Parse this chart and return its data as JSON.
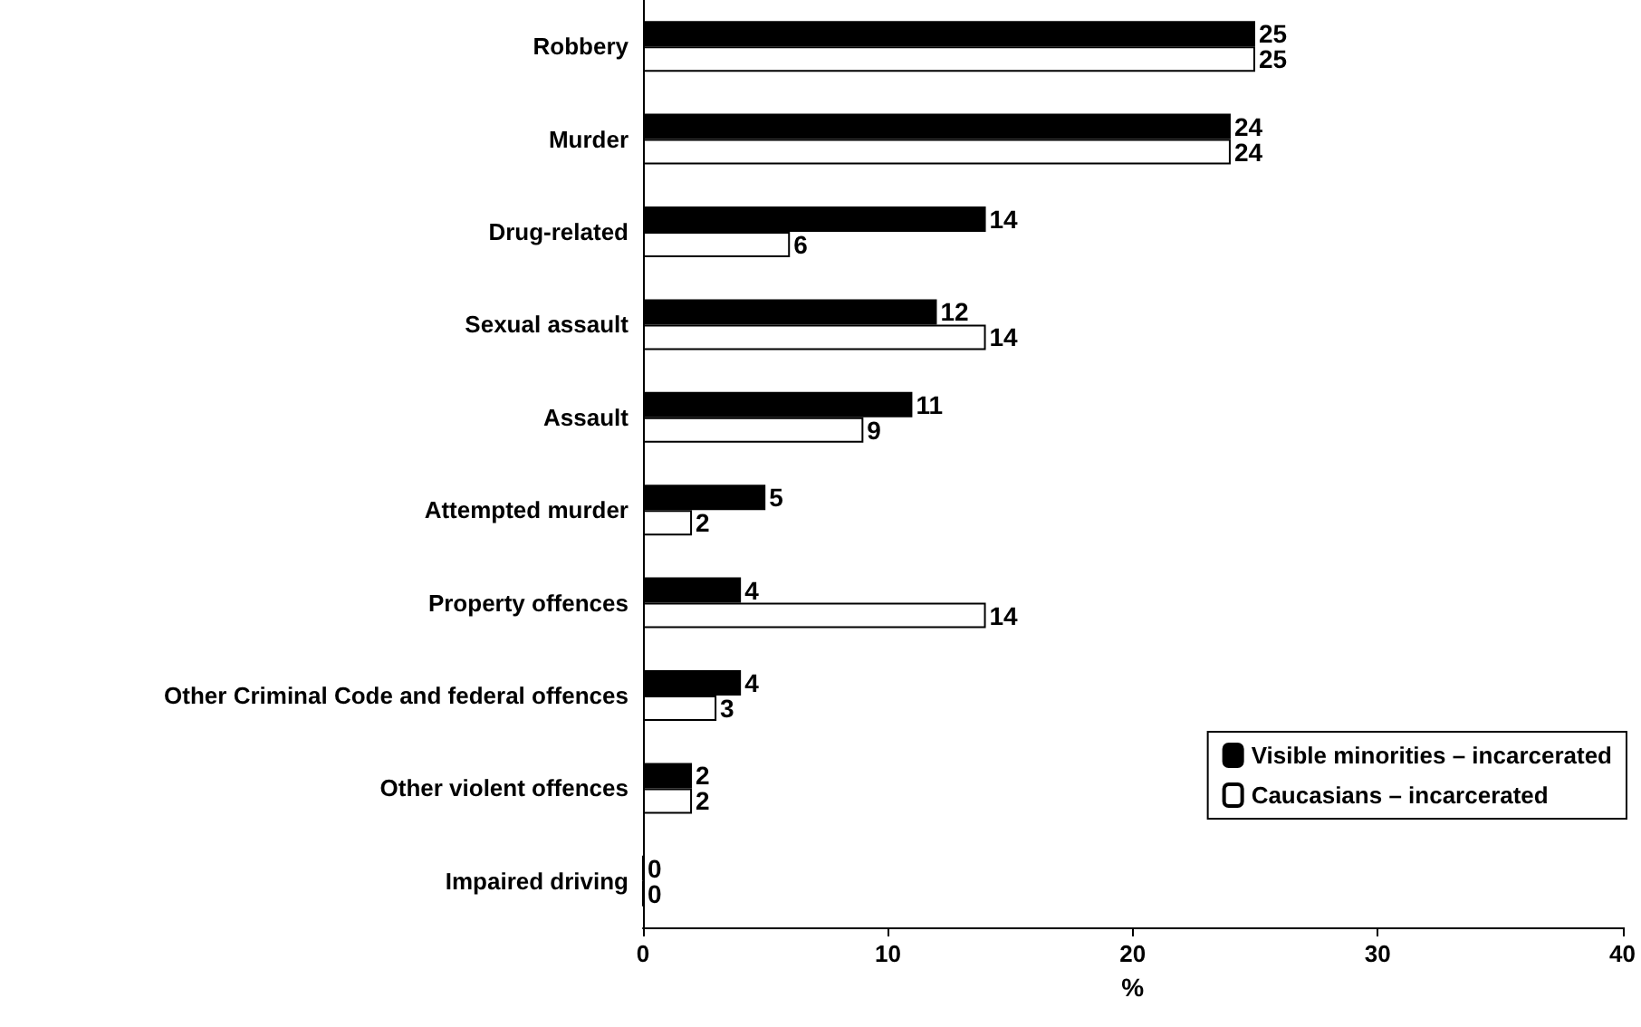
{
  "chart_data": {
    "type": "bar",
    "orientation": "horizontal",
    "xlabel": "%",
    "categories": [
      "Robbery",
      "Murder",
      "Drug-related",
      "Sexual assault",
      "Assault",
      "Attempted murder",
      "Property offences",
      "Other Criminal Code and federal offences",
      "Other violent offences",
      "Impaired driving"
    ],
    "series": [
      {
        "name": "Visible minorities – incarcerated",
        "color": "#000000",
        "values": [
          25,
          24,
          14,
          12,
          11,
          5,
          4,
          4,
          2,
          0
        ]
      },
      {
        "name": "Caucasians – incarcerated",
        "color": "#ffffff",
        "values": [
          25,
          24,
          6,
          14,
          9,
          2,
          14,
          3,
          2,
          0
        ]
      }
    ],
    "xlim": [
      0,
      40
    ],
    "xticks": [
      0,
      10,
      20,
      30,
      40
    ],
    "grid": false,
    "legend": "bottom right",
    "data_labels": true
  }
}
